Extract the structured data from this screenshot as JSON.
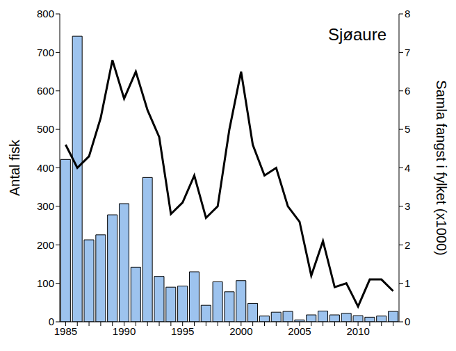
{
  "chart_data": {
    "type": "bar",
    "title": "Sjøaure",
    "y_label": "Antal fisk",
    "y2_label": "Samla fangst i fylket (x1000)",
    "categories": [
      "1985",
      null,
      null,
      null,
      null,
      "1990",
      null,
      null,
      null,
      null,
      "1995",
      null,
      null,
      null,
      null,
      "2000",
      null,
      null,
      null,
      null,
      "2005",
      null,
      null,
      null,
      null,
      "2010",
      null,
      null,
      null
    ],
    "series": [
      {
        "type": "bar",
        "color": "#9dc3ee",
        "values": [
          422,
          742,
          213,
          226,
          278,
          307,
          142,
          375,
          118,
          90,
          93,
          130,
          43,
          104,
          78,
          107,
          48,
          15,
          25,
          27,
          5,
          18,
          28,
          18,
          22,
          16,
          12,
          15,
          27
        ]
      },
      {
        "type": "line",
        "axis": "y2",
        "color": "#000000",
        "values": [
          4.6,
          4.0,
          4.3,
          5.3,
          6.8,
          5.8,
          6.5,
          5.5,
          4.8,
          2.8,
          3.1,
          3.8,
          2.7,
          3.0,
          5.0,
          6.5,
          4.6,
          3.8,
          4.0,
          3.0,
          2.6,
          1.2,
          2.1,
          0.9,
          1.0,
          0.4,
          1.1,
          1.1,
          0.8
        ]
      }
    ],
    "ylim": [
      0,
      800
    ],
    "yticks": [
      0,
      100,
      200,
      300,
      400,
      500,
      600,
      700,
      800
    ],
    "y2lim": [
      0,
      8
    ],
    "y2ticks": [
      0,
      1,
      2,
      3,
      4,
      5,
      6,
      7,
      8
    ]
  }
}
